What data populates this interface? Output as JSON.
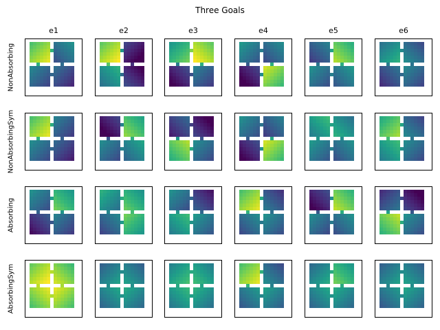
{
  "chart_data": {
    "type": "heatmap",
    "title": "Three Goals",
    "columns": [
      "e1",
      "e2",
      "e3",
      "e4",
      "e5",
      "e6"
    ],
    "rows": [
      "NonAbsorbing",
      "NonAbsorbingSym",
      "Absorbing",
      "AbsorbingSym"
    ],
    "colormap": "viridis",
    "grid": false,
    "panels": [
      [
        {
          "rooms": [
            0.88,
            0.42,
            0.38,
            0.28
          ],
          "dir": [
            "tl",
            "bl",
            "br",
            "br"
          ]
        },
        {
          "rooms": [
            0.92,
            0.12,
            0.55,
            0.15
          ],
          "dir": [
            "tl",
            "br",
            "bl",
            "tr"
          ]
        },
        {
          "rooms": [
            0.7,
            0.92,
            0.15,
            0.35
          ],
          "dir": [
            "tl",
            "tr",
            "bl",
            "br"
          ]
        },
        {
          "rooms": [
            0.45,
            0.4,
            0.12,
            0.85
          ],
          "dir": [
            "br",
            "bl",
            "bl",
            "br"
          ]
        },
        {
          "rooms": [
            0.35,
            0.8,
            0.42,
            0.45
          ],
          "dir": [
            "bl",
            "tr",
            "br",
            "bl"
          ]
        },
        {
          "rooms": [
            0.55,
            0.4,
            0.3,
            0.38
          ],
          "dir": [
            "tl",
            "tr",
            "bl",
            "br"
          ]
        }
      ],
      [
        {
          "rooms": [
            0.88,
            0.35,
            0.4,
            0.25
          ],
          "dir": [
            "tl",
            "br",
            "br",
            "br"
          ]
        },
        {
          "rooms": [
            0.12,
            0.75,
            0.4,
            0.5
          ],
          "dir": [
            "bl",
            "tr",
            "br",
            "bl"
          ]
        },
        {
          "rooms": [
            0.25,
            0.12,
            0.8,
            0.4
          ],
          "dir": [
            "bl",
            "tr",
            "bl",
            "br"
          ]
        },
        {
          "rooms": [
            0.42,
            0.35,
            0.15,
            0.85
          ],
          "dir": [
            "br",
            "bl",
            "bl",
            "br"
          ]
        },
        {
          "rooms": [
            0.6,
            0.55,
            0.45,
            0.42
          ],
          "dir": [
            "bl",
            "tr",
            "br",
            "bl"
          ]
        },
        {
          "rooms": [
            0.78,
            0.38,
            0.6,
            0.4
          ],
          "dir": [
            "tl",
            "tr",
            "bl",
            "br"
          ]
        }
      ],
      [
        {
          "rooms": [
            0.42,
            0.7,
            0.2,
            0.35
          ],
          "dir": [
            "br",
            "tr",
            "bl",
            "br"
          ]
        },
        {
          "rooms": [
            0.55,
            0.68,
            0.38,
            0.7
          ],
          "dir": [
            "br",
            "tr",
            "bl",
            "br"
          ]
        },
        {
          "rooms": [
            0.42,
            0.22,
            0.6,
            0.45
          ],
          "dir": [
            "br",
            "tr",
            "bl",
            "br"
          ]
        },
        {
          "rooms": [
            0.88,
            0.32,
            0.4,
            0.42
          ],
          "dir": [
            "tl",
            "tr",
            "bl",
            "br"
          ]
        },
        {
          "rooms": [
            0.15,
            0.82,
            0.4,
            0.42
          ],
          "dir": [
            "bl",
            "tr",
            "br",
            "bl"
          ]
        },
        {
          "rooms": [
            0.3,
            0.12,
            0.82,
            0.42
          ],
          "dir": [
            "tl",
            "tr",
            "bl",
            "br"
          ]
        }
      ],
      [
        {
          "rooms": [
            0.93,
            0.85,
            0.88,
            0.88
          ],
          "dir": [
            "tl",
            "tr",
            "bl",
            "br"
          ]
        },
        {
          "rooms": [
            0.48,
            0.48,
            0.5,
            0.52
          ],
          "dir": [
            "tl",
            "tr",
            "bl",
            "br"
          ]
        },
        {
          "rooms": [
            0.62,
            0.6,
            0.58,
            0.55
          ],
          "dir": [
            "tl",
            "tr",
            "bl",
            "br"
          ]
        },
        {
          "rooms": [
            0.88,
            0.4,
            0.45,
            0.48
          ],
          "dir": [
            "tl",
            "tr",
            "bl",
            "br"
          ]
        },
        {
          "rooms": [
            0.52,
            0.7,
            0.5,
            0.52
          ],
          "dir": [
            "tl",
            "tr",
            "bl",
            "br"
          ]
        },
        {
          "rooms": [
            0.48,
            0.48,
            0.45,
            0.5
          ],
          "dir": [
            "tl",
            "tr",
            "bl",
            "br"
          ]
        }
      ]
    ]
  }
}
